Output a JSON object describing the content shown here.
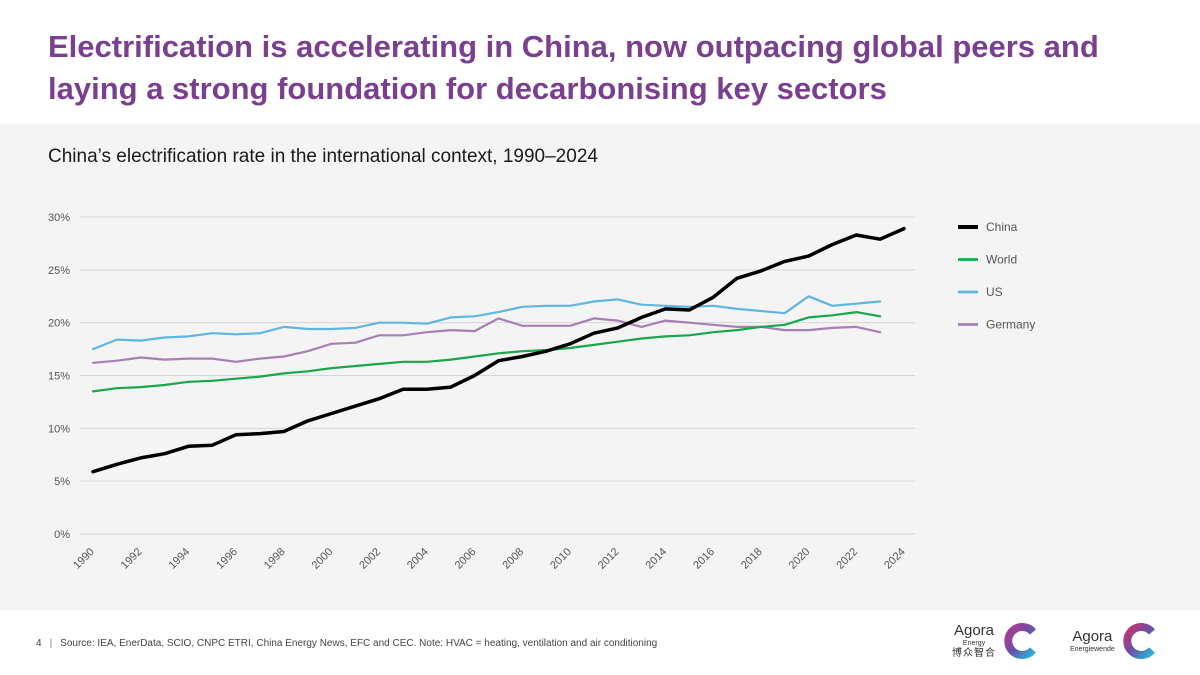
{
  "headline": "Electrification is accelerating in China, now outpacing global peers and laying a strong foundation for decarbonising key sectors",
  "footer": {
    "page_number": "4",
    "separator": "|",
    "source": "Source: IEA, EnerData, SCIO, CNPC ETRI, China Energy News, EFC and CEC. Note: HVAC = heating, ventilation and air conditioning"
  },
  "logos": {
    "logo1": {
      "brand": "Agora",
      "sub": "Energy",
      "chinese": "博众智合"
    },
    "logo2": {
      "brand": "Agora",
      "sub": "Energiewende"
    }
  },
  "chart_data": {
    "type": "line",
    "title": "China’s electrification rate in the international context, 1990–2024",
    "xlabel": "",
    "ylabel": "",
    "xlim": [
      1990,
      2024
    ],
    "ylim": [
      0,
      30
    ],
    "yticks": [
      "0%",
      "5%",
      "10%",
      "15%",
      "20%",
      "25%",
      "30%"
    ],
    "yticks_values": [
      0,
      5,
      10,
      15,
      20,
      25,
      30
    ],
    "xticks": [
      "1990",
      "1992",
      "1994",
      "1996",
      "1998",
      "2000",
      "2002",
      "2004",
      "2006",
      "2008",
      "2010",
      "2012",
      "2014",
      "2016",
      "2018",
      "2020",
      "2022",
      "2024"
    ],
    "grid": true,
    "legend_position": "right",
    "series": [
      {
        "name": "China",
        "color": "#000000",
        "width": 3.5,
        "x": [
          1990,
          1991,
          1992,
          1993,
          1994,
          1995,
          1996,
          1997,
          1998,
          1999,
          2000,
          2001,
          2002,
          2003,
          2004,
          2005,
          2006,
          2007,
          2008,
          2009,
          2010,
          2011,
          2012,
          2013,
          2014,
          2015,
          2016,
          2017,
          2018,
          2019,
          2020,
          2021,
          2022,
          2023,
          2024
        ],
        "values": [
          5.9,
          6.6,
          7.2,
          7.6,
          8.3,
          8.4,
          9.4,
          9.5,
          9.7,
          10.7,
          11.4,
          12.1,
          12.8,
          13.7,
          13.7,
          13.9,
          15.0,
          16.4,
          16.8,
          17.3,
          18.0,
          19.0,
          19.5,
          20.5,
          21.3,
          21.2,
          22.4,
          24.2,
          24.9,
          25.8,
          26.3,
          27.4,
          28.3,
          27.9,
          28.9
        ]
      },
      {
        "name": "World",
        "color": "#1aa64a",
        "width": 2.2,
        "x": [
          1990,
          1991,
          1992,
          1993,
          1994,
          1995,
          1996,
          1997,
          1998,
          1999,
          2000,
          2001,
          2002,
          2003,
          2004,
          2005,
          2006,
          2007,
          2008,
          2009,
          2010,
          2011,
          2012,
          2013,
          2014,
          2015,
          2016,
          2017,
          2018,
          2019,
          2020,
          2021,
          2022,
          2023
        ],
        "values": [
          13.5,
          13.8,
          13.9,
          14.1,
          14.4,
          14.5,
          14.7,
          14.9,
          15.2,
          15.4,
          15.7,
          15.9,
          16.1,
          16.3,
          16.3,
          16.5,
          16.8,
          17.1,
          17.3,
          17.4,
          17.6,
          17.9,
          18.2,
          18.5,
          18.7,
          18.8,
          19.1,
          19.3,
          19.6,
          19.8,
          20.5,
          20.7,
          21.0,
          20.6
        ]
      },
      {
        "name": "US",
        "color": "#5fb7e0",
        "width": 2.2,
        "x": [
          1990,
          1991,
          1992,
          1993,
          1994,
          1995,
          1996,
          1997,
          1998,
          1999,
          2000,
          2001,
          2002,
          2003,
          2004,
          2005,
          2006,
          2007,
          2008,
          2009,
          2010,
          2011,
          2012,
          2013,
          2014,
          2015,
          2016,
          2017,
          2018,
          2019,
          2020,
          2021,
          2022,
          2023
        ],
        "values": [
          17.5,
          18.4,
          18.3,
          18.6,
          18.7,
          19.0,
          18.9,
          19.0,
          19.6,
          19.4,
          19.4,
          19.5,
          20.0,
          20.0,
          19.9,
          20.5,
          20.6,
          21.0,
          21.5,
          21.6,
          21.6,
          22.0,
          22.2,
          21.7,
          21.6,
          21.5,
          21.6,
          21.3,
          21.1,
          20.9,
          22.5,
          21.6,
          21.8,
          22.0
        ]
      },
      {
        "name": "Germany",
        "color": "#a87fb4",
        "width": 2.2,
        "x": [
          1990,
          1991,
          1992,
          1993,
          1994,
          1995,
          1996,
          1997,
          1998,
          1999,
          2000,
          2001,
          2002,
          2003,
          2004,
          2005,
          2006,
          2007,
          2008,
          2009,
          2010,
          2011,
          2012,
          2013,
          2014,
          2015,
          2016,
          2017,
          2018,
          2019,
          2020,
          2021,
          2022,
          2023
        ],
        "values": [
          16.2,
          16.4,
          16.7,
          16.5,
          16.6,
          16.6,
          16.3,
          16.6,
          16.8,
          17.3,
          18.0,
          18.1,
          18.8,
          18.8,
          19.1,
          19.3,
          19.2,
          20.4,
          19.7,
          19.7,
          19.7,
          20.4,
          20.2,
          19.6,
          20.2,
          20.0,
          19.8,
          19.6,
          19.6,
          19.3,
          19.3,
          19.5,
          19.6,
          19.1
        ]
      }
    ]
  }
}
